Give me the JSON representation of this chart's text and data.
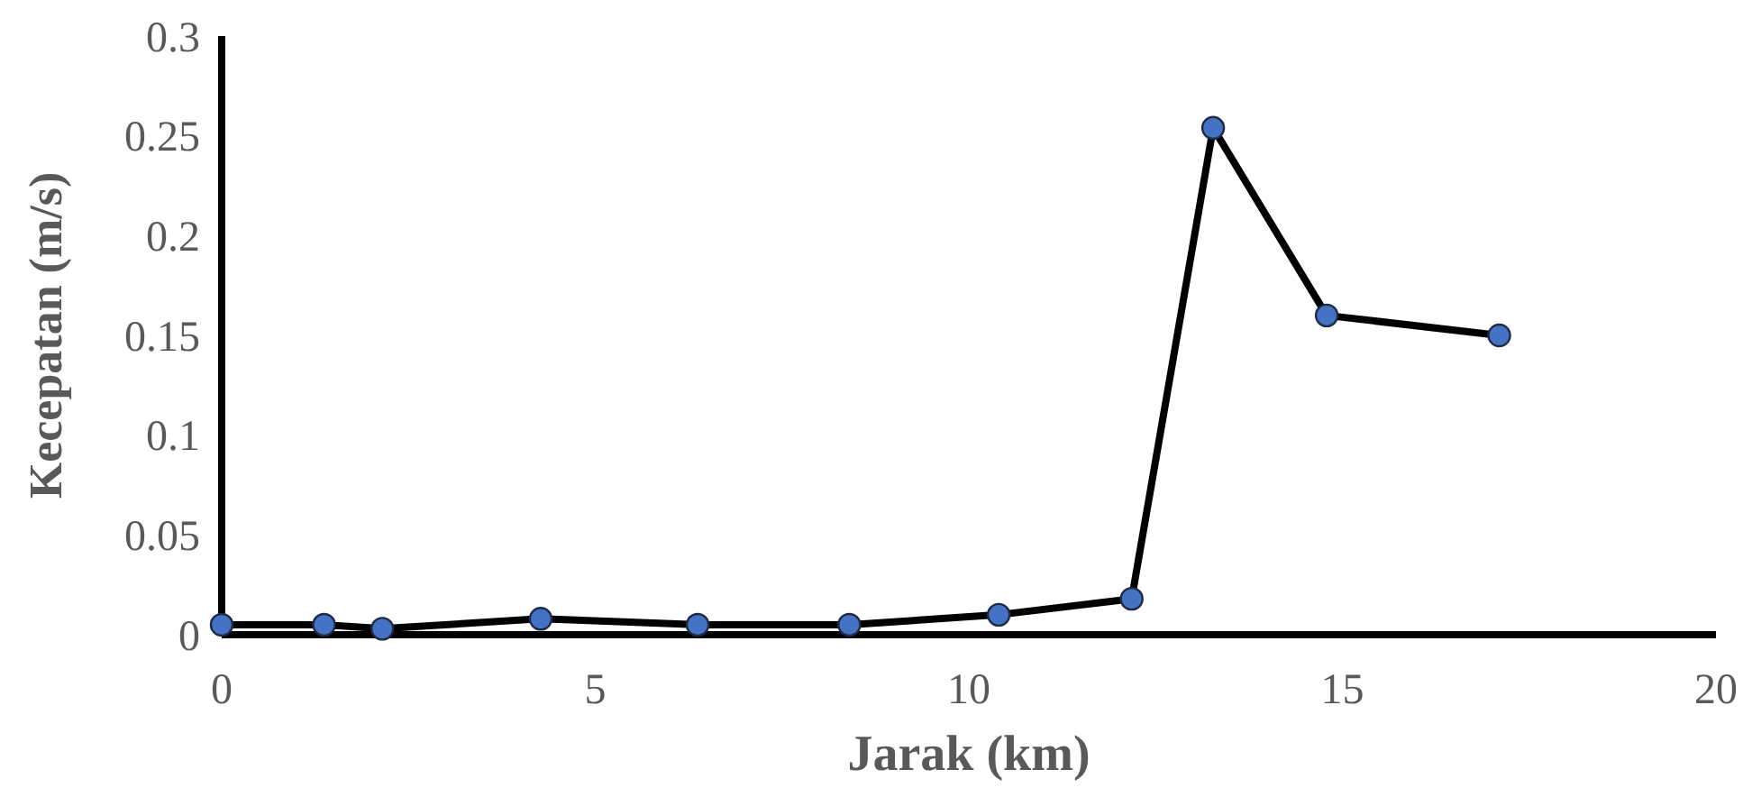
{
  "chart_data": {
    "type": "line",
    "xlabel": "Jarak (km)",
    "ylabel": "Kecepatan (m/s)",
    "xlim": [
      0,
      20
    ],
    "xticks": [
      0,
      5,
      10,
      15,
      20
    ],
    "ylim": [
      0,
      0.3
    ],
    "yticks": [
      0,
      0.05,
      0.1,
      0.15,
      0.2,
      0.25,
      0.3
    ],
    "grid": false,
    "marker": "circle",
    "line_style": "solid",
    "series": [
      {
        "color": "#000000",
        "colors": [
          "#4472c4",
          "#4472c4",
          "#4472c4",
          "#4472c4",
          "#4472c4",
          "#4472c4",
          "#4472c4",
          "#4472c4",
          "#4472c4",
          "#4472c4",
          "#4472c4"
        ],
        "x": [
          0,
          1.37,
          2.15,
          4.27,
          6.37,
          8.4,
          10.4,
          12.18,
          13.27,
          14.79,
          17.1
        ],
        "values": [
          0.005,
          0.005,
          0.003,
          0.008,
          0.005,
          0.005,
          0.01,
          0.018,
          0.254,
          0.16,
          0.15
        ]
      }
    ]
  }
}
